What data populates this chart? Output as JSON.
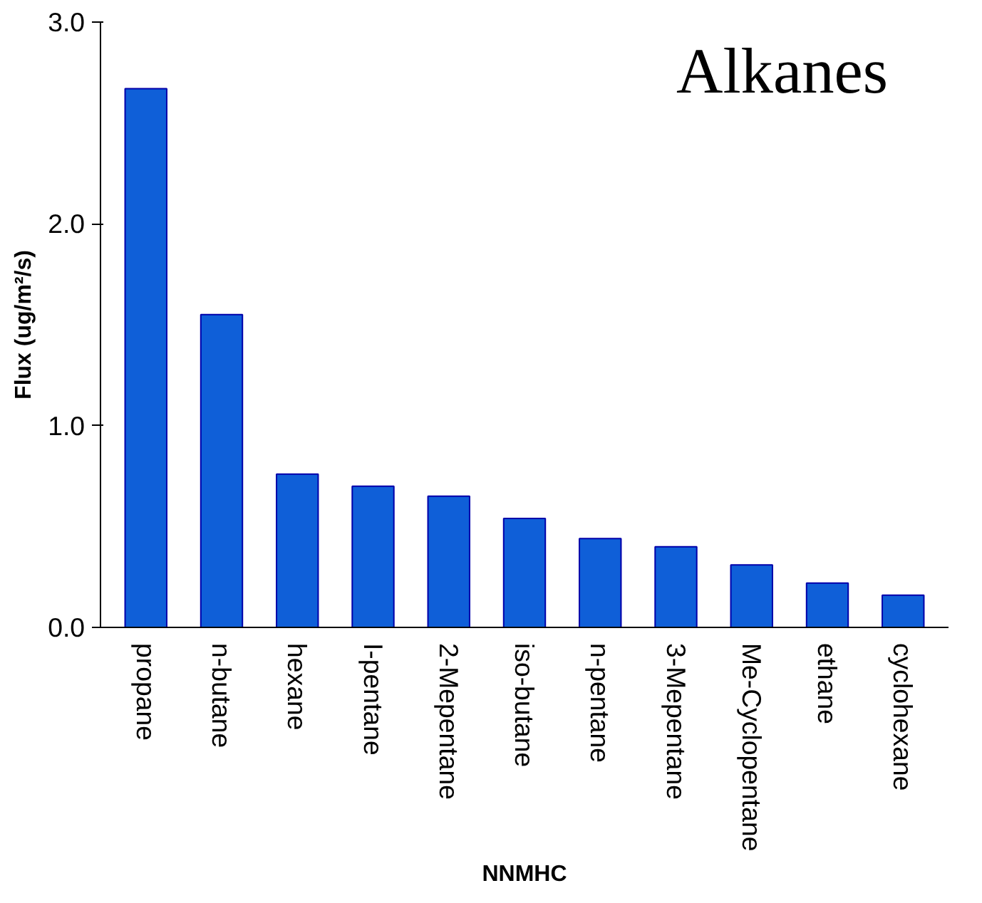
{
  "chart_data": {
    "type": "bar",
    "title": "Alkanes",
    "xlabel": "NNMHC",
    "ylabel": "Flux (ug/m²/s)",
    "categories": [
      "propane",
      "n-butane",
      "hexane",
      "I-pentane",
      "2-Mepentane",
      "iso-butane",
      "n-pentane",
      "3-Mepentane",
      "Me-Cyclopentane",
      "ethane",
      "cyclohexane"
    ],
    "values": [
      2.67,
      1.55,
      0.76,
      0.7,
      0.65,
      0.54,
      0.44,
      0.4,
      0.31,
      0.22,
      0.16
    ],
    "color": "#0f5fd8",
    "ylim": [
      0,
      3
    ],
    "yticks": [
      {
        "value": 0,
        "label": "0.0"
      },
      {
        "value": 1,
        "label": "1.0"
      },
      {
        "value": 2,
        "label": "2.0"
      },
      {
        "value": 3,
        "label": "3.0"
      }
    ],
    "grid": false
  }
}
